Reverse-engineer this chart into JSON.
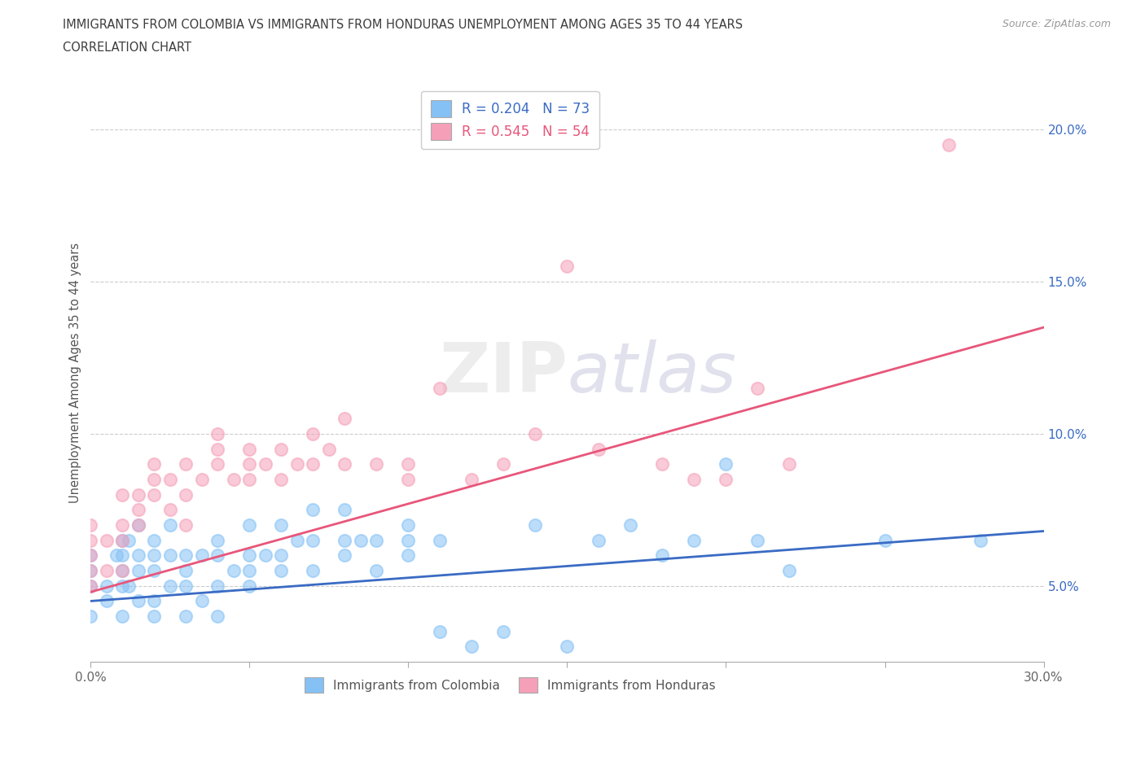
{
  "title_line1": "IMMIGRANTS FROM COLOMBIA VS IMMIGRANTS FROM HONDURAS UNEMPLOYMENT AMONG AGES 35 TO 44 YEARS",
  "title_line2": "CORRELATION CHART",
  "source_text": "Source: ZipAtlas.com",
  "ylabel": "Unemployment Among Ages 35 to 44 years",
  "xlim": [
    0.0,
    0.3
  ],
  "ylim": [
    0.025,
    0.215
  ],
  "xticks": [
    0.0,
    0.05,
    0.1,
    0.15,
    0.2,
    0.25,
    0.3
  ],
  "xtick_labels": [
    "0.0%",
    "",
    "",
    "",
    "",
    "",
    "30.0%"
  ],
  "ytick_labels_right": [
    "5.0%",
    "10.0%",
    "15.0%",
    "20.0%"
  ],
  "ytick_vals_right": [
    0.05,
    0.1,
    0.15,
    0.2
  ],
  "color_colombia": "#85C1F5",
  "color_honduras": "#F5A0B8",
  "color_line_colombia": "#3A6BC4",
  "color_line_honduras": "#E8567A",
  "R_colombia": 0.204,
  "N_colombia": 73,
  "R_honduras": 0.545,
  "N_honduras": 54,
  "watermark": "ZIPatlas",
  "title_color": "#3D3D3D",
  "legend_label_colombia": "Immigrants from Colombia",
  "legend_label_honduras": "Immigrants from Honduras",
  "colombia_scatter_x": [
    0.0,
    0.0,
    0.0,
    0.0,
    0.005,
    0.005,
    0.008,
    0.01,
    0.01,
    0.01,
    0.01,
    0.01,
    0.012,
    0.012,
    0.015,
    0.015,
    0.015,
    0.015,
    0.02,
    0.02,
    0.02,
    0.02,
    0.02,
    0.025,
    0.025,
    0.025,
    0.03,
    0.03,
    0.03,
    0.03,
    0.035,
    0.035,
    0.04,
    0.04,
    0.04,
    0.04,
    0.045,
    0.05,
    0.05,
    0.05,
    0.05,
    0.055,
    0.06,
    0.06,
    0.06,
    0.065,
    0.07,
    0.07,
    0.07,
    0.08,
    0.08,
    0.08,
    0.085,
    0.09,
    0.09,
    0.1,
    0.1,
    0.1,
    0.11,
    0.11,
    0.12,
    0.13,
    0.14,
    0.15,
    0.16,
    0.17,
    0.18,
    0.19,
    0.2,
    0.21,
    0.22,
    0.25,
    0.28
  ],
  "colombia_scatter_y": [
    0.05,
    0.055,
    0.04,
    0.06,
    0.05,
    0.045,
    0.06,
    0.05,
    0.04,
    0.055,
    0.06,
    0.065,
    0.05,
    0.065,
    0.045,
    0.055,
    0.06,
    0.07,
    0.04,
    0.045,
    0.055,
    0.06,
    0.065,
    0.05,
    0.06,
    0.07,
    0.04,
    0.05,
    0.055,
    0.06,
    0.045,
    0.06,
    0.04,
    0.05,
    0.06,
    0.065,
    0.055,
    0.05,
    0.055,
    0.06,
    0.07,
    0.06,
    0.055,
    0.06,
    0.07,
    0.065,
    0.055,
    0.065,
    0.075,
    0.06,
    0.065,
    0.075,
    0.065,
    0.055,
    0.065,
    0.06,
    0.065,
    0.07,
    0.065,
    0.035,
    0.03,
    0.035,
    0.07,
    0.03,
    0.065,
    0.07,
    0.06,
    0.065,
    0.09,
    0.065,
    0.055,
    0.065,
    0.065
  ],
  "honduras_scatter_x": [
    0.0,
    0.0,
    0.0,
    0.0,
    0.0,
    0.005,
    0.005,
    0.01,
    0.01,
    0.01,
    0.01,
    0.015,
    0.015,
    0.015,
    0.02,
    0.02,
    0.02,
    0.025,
    0.025,
    0.03,
    0.03,
    0.03,
    0.035,
    0.04,
    0.04,
    0.04,
    0.045,
    0.05,
    0.05,
    0.05,
    0.055,
    0.06,
    0.06,
    0.065,
    0.07,
    0.07,
    0.075,
    0.08,
    0.08,
    0.09,
    0.1,
    0.1,
    0.11,
    0.12,
    0.13,
    0.14,
    0.15,
    0.16,
    0.18,
    0.19,
    0.2,
    0.21,
    0.22,
    0.27
  ],
  "honduras_scatter_y": [
    0.05,
    0.055,
    0.06,
    0.065,
    0.07,
    0.055,
    0.065,
    0.055,
    0.065,
    0.07,
    0.08,
    0.07,
    0.075,
    0.08,
    0.08,
    0.085,
    0.09,
    0.075,
    0.085,
    0.07,
    0.08,
    0.09,
    0.085,
    0.09,
    0.095,
    0.1,
    0.085,
    0.085,
    0.09,
    0.095,
    0.09,
    0.085,
    0.095,
    0.09,
    0.09,
    0.1,
    0.095,
    0.09,
    0.105,
    0.09,
    0.085,
    0.09,
    0.115,
    0.085,
    0.09,
    0.1,
    0.155,
    0.095,
    0.09,
    0.085,
    0.085,
    0.115,
    0.09,
    0.195
  ]
}
